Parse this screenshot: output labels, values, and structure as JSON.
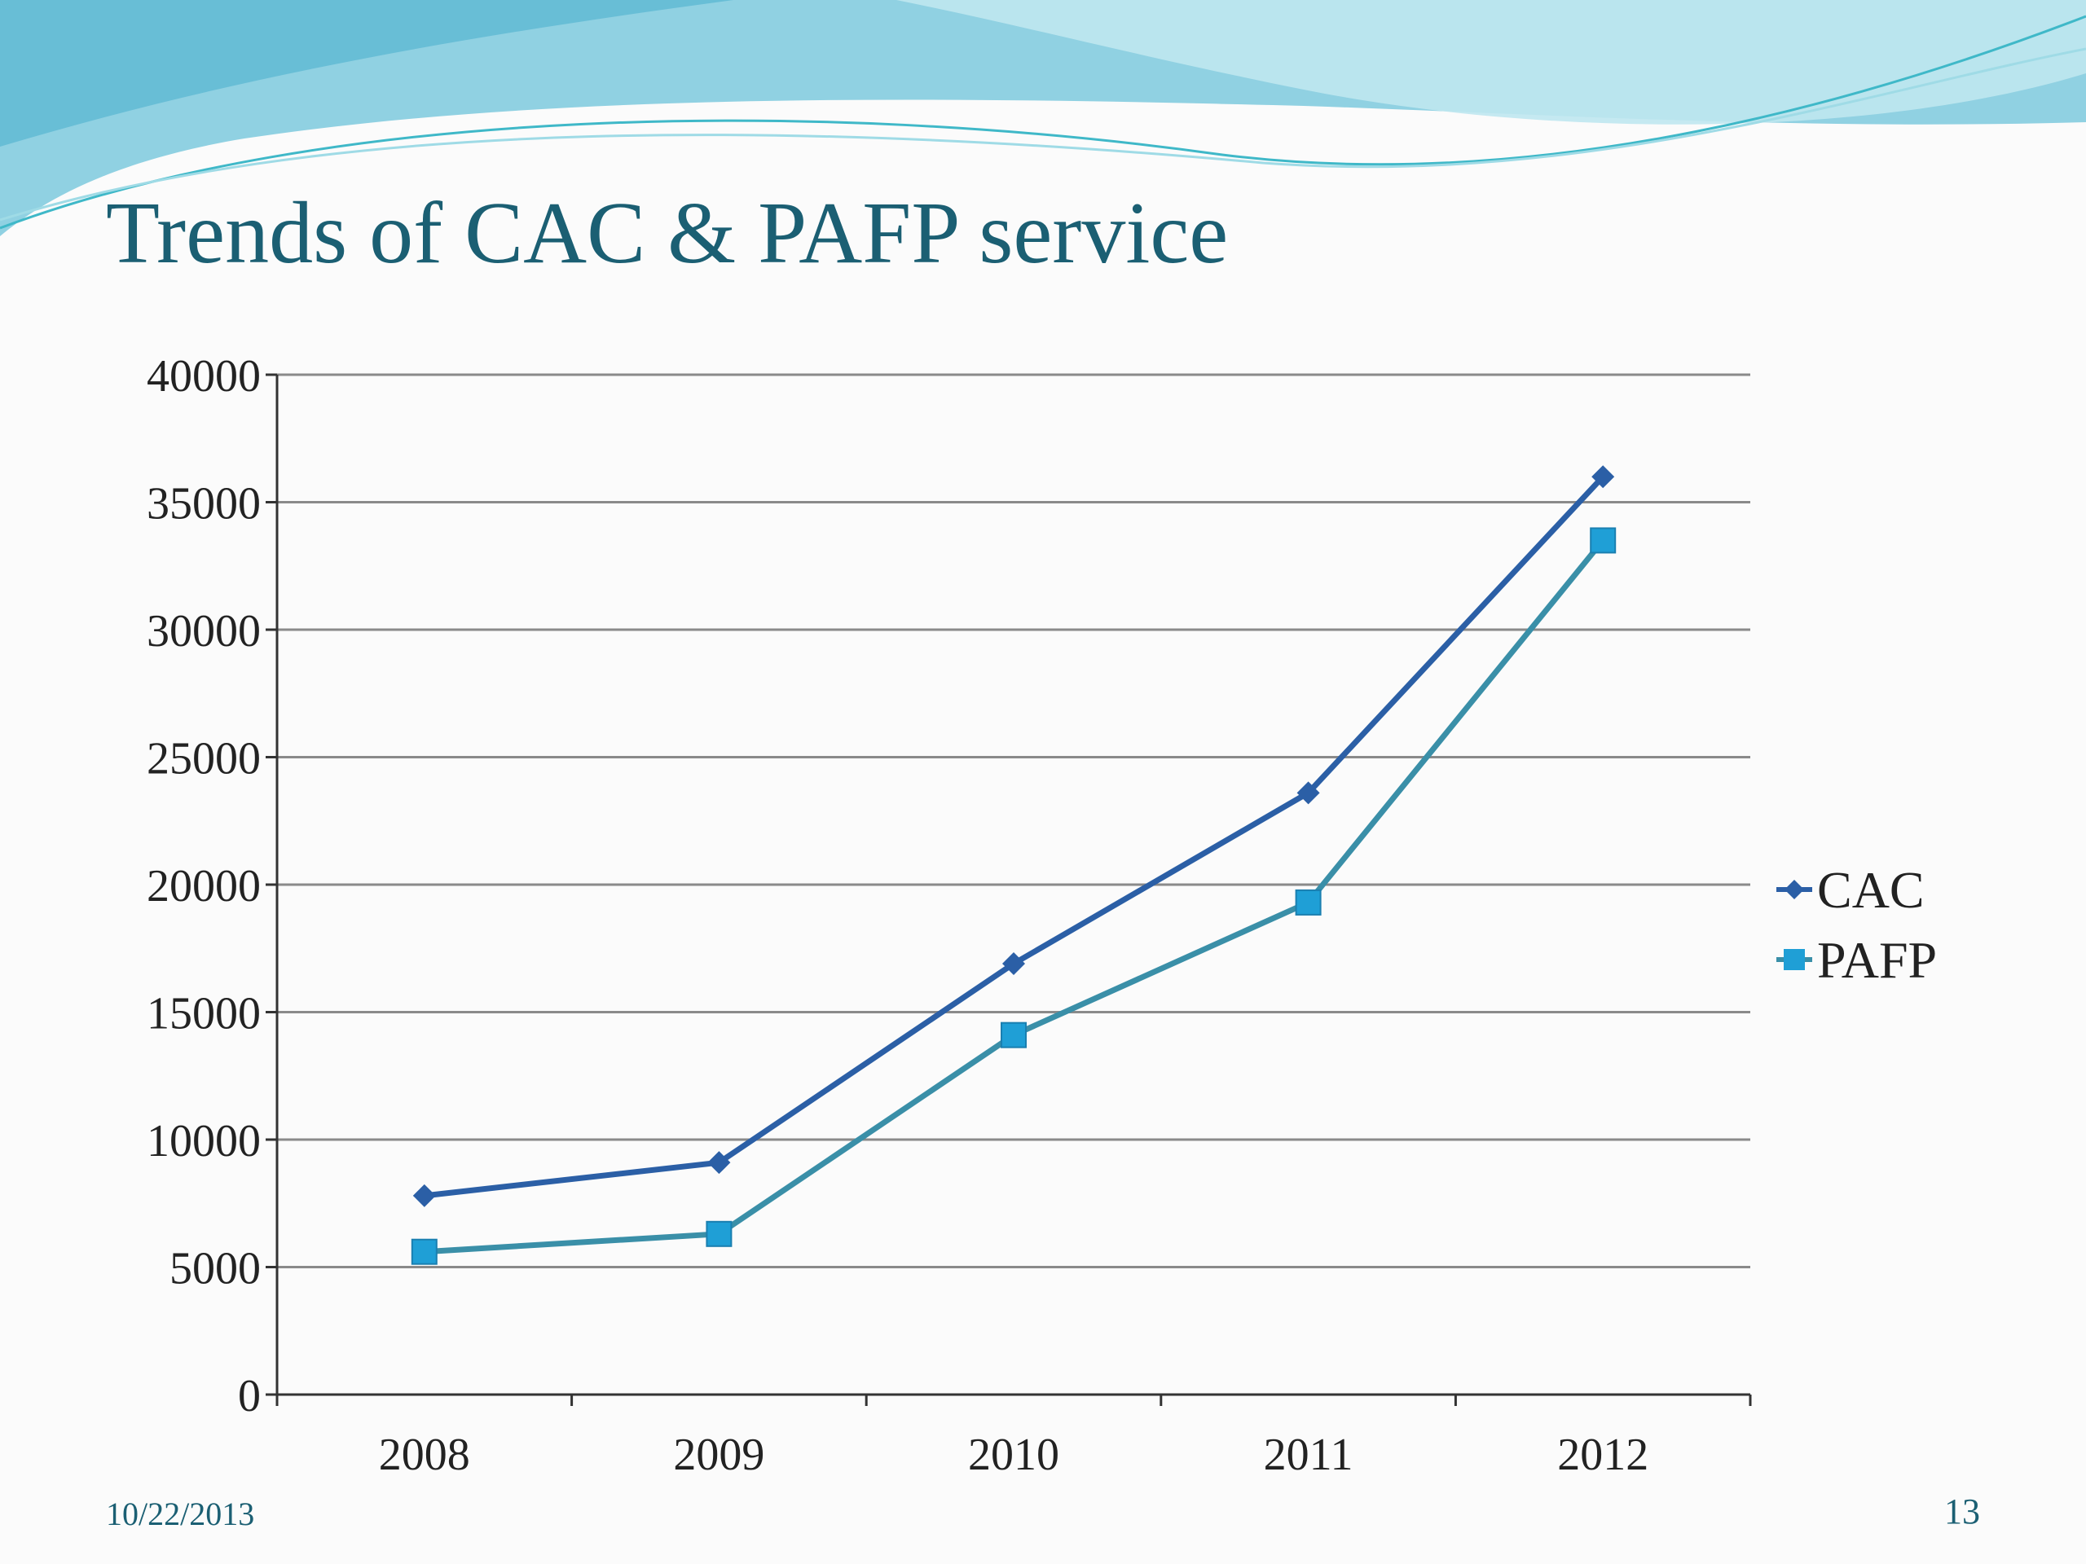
{
  "slide": {
    "title": "Trends of CAC & PAFP service",
    "date": "10/22/2013",
    "page_number": "13"
  },
  "colors": {
    "title": "#1b5f73",
    "cac": "#2b5fa6",
    "pafp": "#1f9fd6",
    "pafp_line": "#3a8fa8",
    "grid": "#8a8a8a",
    "wave_light": "#bfe7ef",
    "wave_mid": "#7cc9dd",
    "wave_dark": "#4fb0cf"
  },
  "chart_data": {
    "type": "line",
    "title": "",
    "xlabel": "",
    "ylabel": "",
    "categories": [
      "2008",
      "2009",
      "2010",
      "2011",
      "2012"
    ],
    "y_ticks": [
      "0",
      "5000",
      "10000",
      "15000",
      "20000",
      "25000",
      "30000",
      "35000",
      "40000"
    ],
    "ylim": [
      0,
      40000
    ],
    "grid": true,
    "legend_position": "right",
    "series": [
      {
        "name": "CAC",
        "marker": "diamond",
        "values": [
          7800,
          9100,
          16900,
          23600,
          36000
        ]
      },
      {
        "name": "PAFP",
        "marker": "square",
        "values": [
          5600,
          6300,
          14100,
          19300,
          33500
        ]
      }
    ]
  }
}
